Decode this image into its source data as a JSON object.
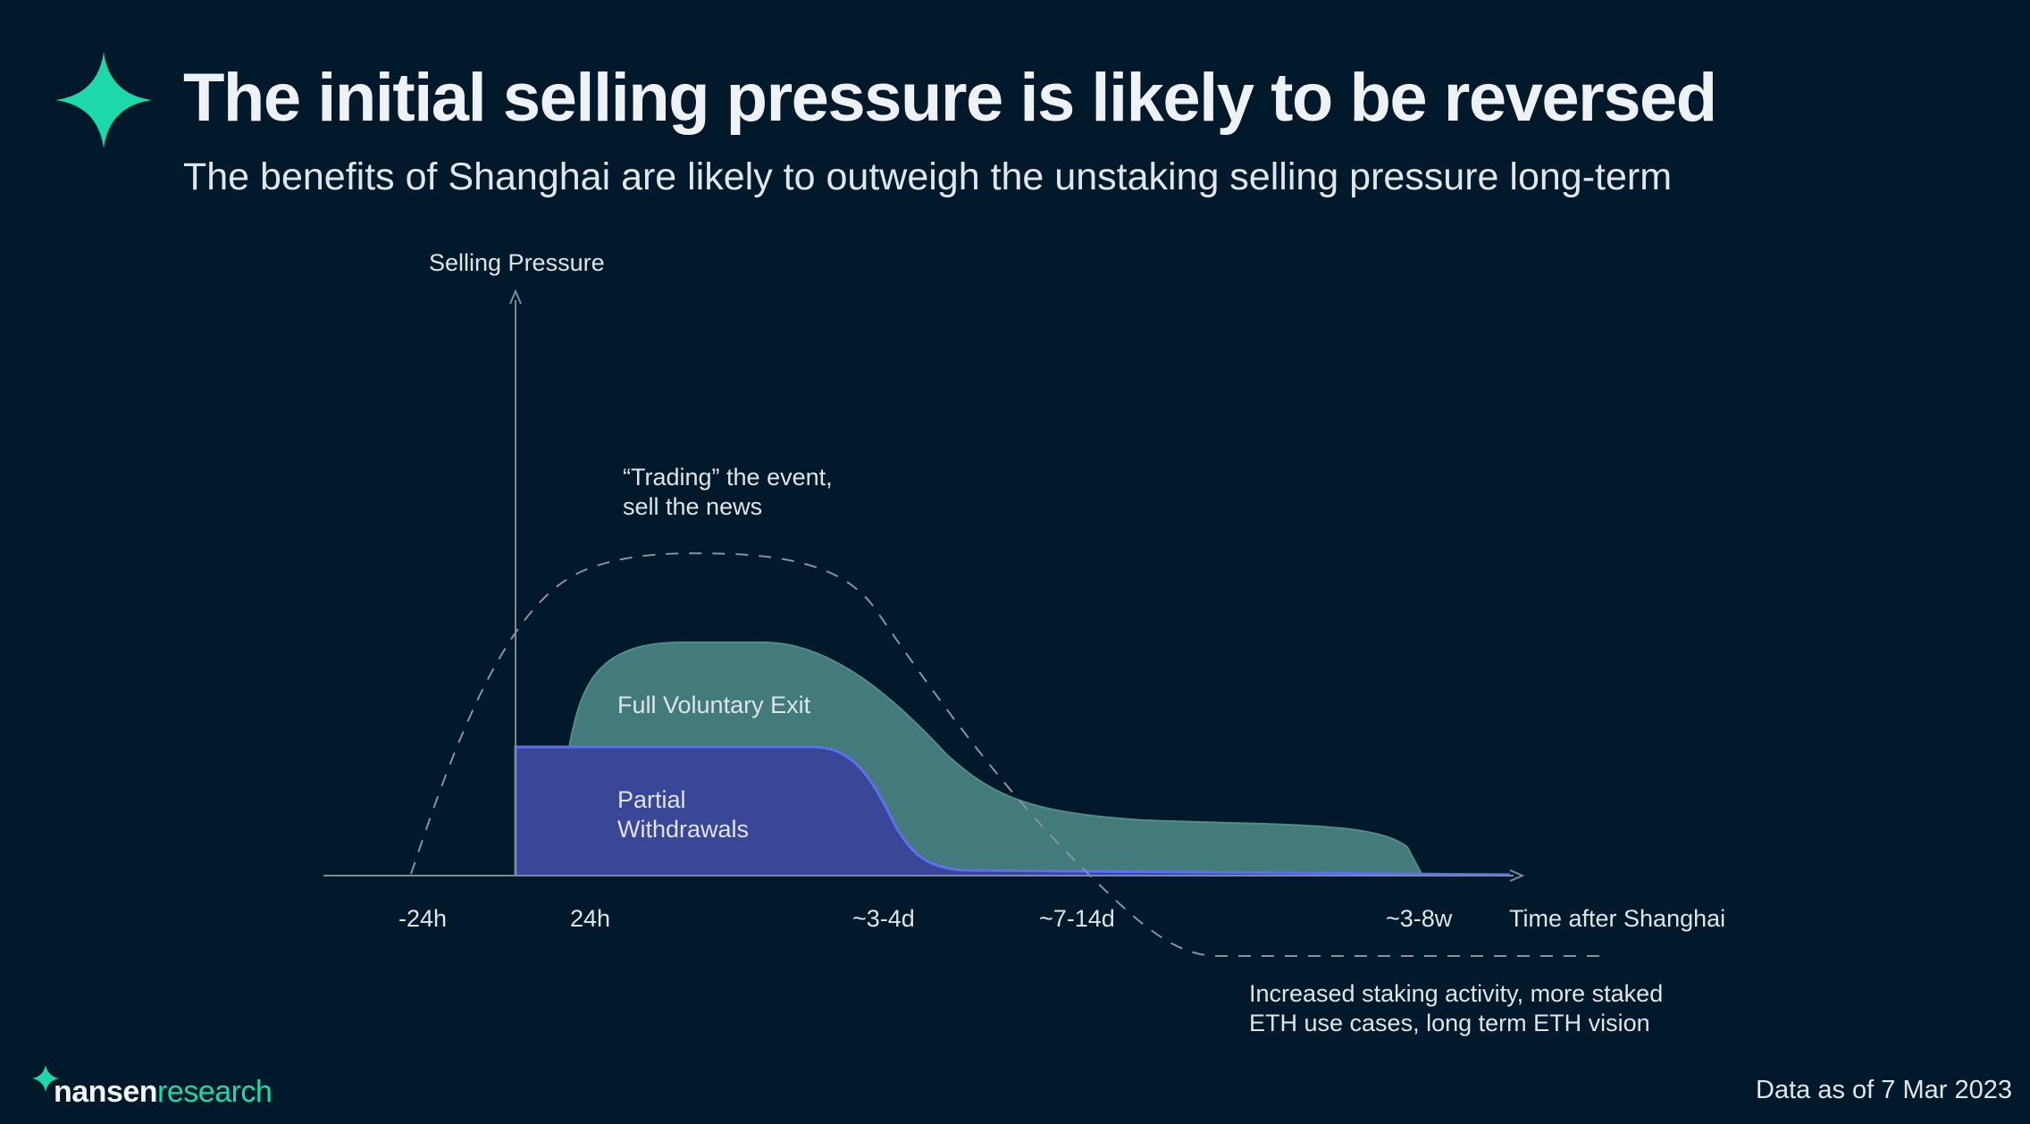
{
  "header": {
    "title": "The initial selling pressure is likely to be reversed",
    "subtitle": "The benefits of Shanghai are likely to outweigh the unstaking selling pressure long-term"
  },
  "diagram": {
    "y_axis_label": "Selling Pressure",
    "x_axis_label": "Time after Shanghai",
    "ticks": [
      "-24h",
      "24h",
      "~3-4d",
      "~7-14d",
      "~3-8w"
    ],
    "areas": {
      "full_exit_label": "Full Voluntary Exit",
      "partial_line1": "Partial",
      "partial_line2": "Withdrawals"
    },
    "annotations": {
      "trading_line1": "“Trading” the event,",
      "trading_line2": "sell the news",
      "staking_line1": "Increased staking activity, more staked",
      "staking_line2": "ETH use cases, long term ETH vision"
    },
    "colors": {
      "background": "#02182b",
      "full_exit_fill": "#437a7b",
      "partial_fill": "#3a4696",
      "partial_stroke": "#5e6ff2",
      "accent": "#1dd8a9"
    }
  },
  "footer": {
    "brand_name": "nansen",
    "brand_sub": "research",
    "data_note": "Data as of 7 Mar 2023"
  }
}
